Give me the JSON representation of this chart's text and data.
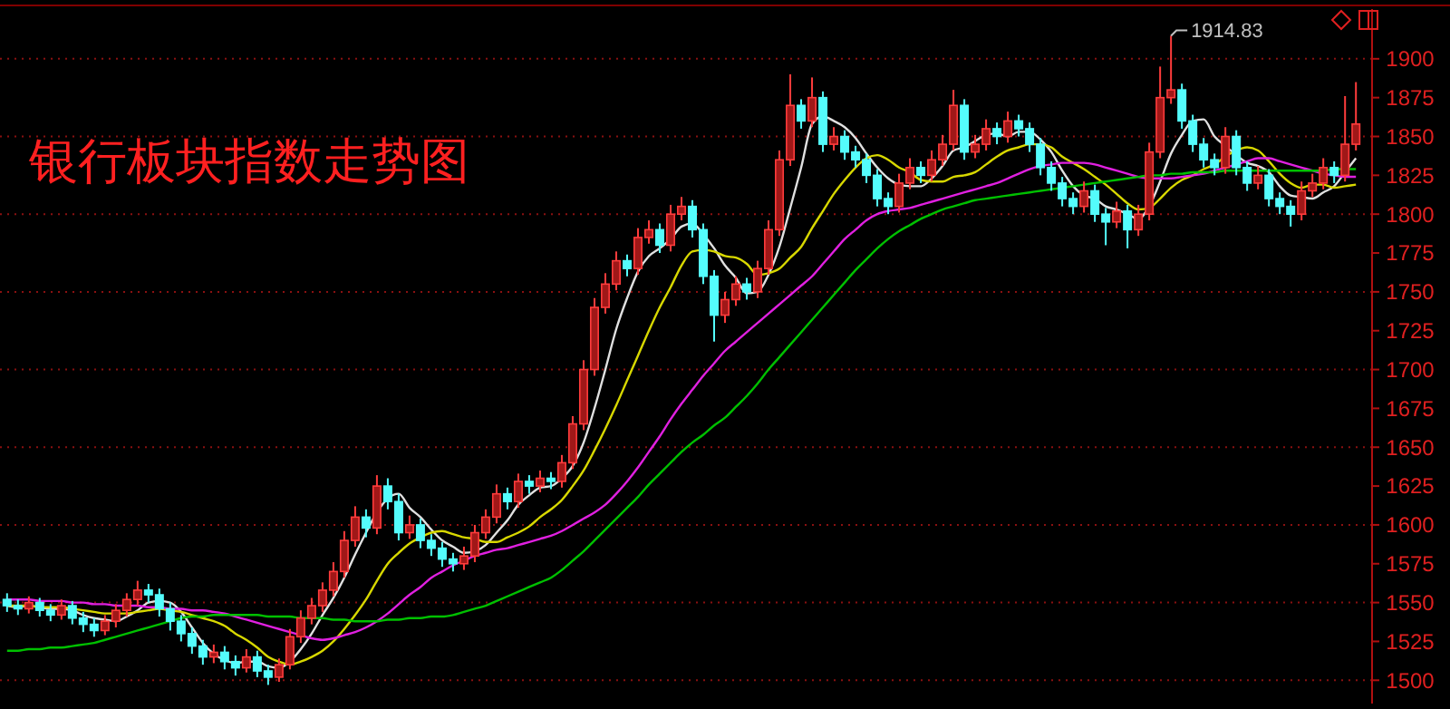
{
  "chart_data": {
    "type": "candlestick",
    "title": "银行板块指数走势图",
    "annotations": [
      "1914.83"
    ],
    "categories": [
      null,
      null,
      null,
      null,
      null,
      null,
      null,
      null,
      null,
      null,
      null,
      null,
      null,
      null,
      null,
      null,
      null,
      null,
      null,
      null,
      null,
      null,
      null,
      null,
      null,
      null,
      null,
      null,
      null,
      null,
      null,
      null,
      null,
      null,
      null,
      null,
      null,
      null,
      null,
      null,
      null,
      null,
      null,
      null,
      null,
      null,
      null,
      null,
      null,
      null,
      null,
      null,
      null,
      null,
      null,
      null,
      null,
      null,
      null,
      null,
      null,
      null,
      null,
      null,
      null,
      null,
      null,
      null,
      null,
      null,
      null,
      null,
      null,
      null,
      null,
      null,
      null,
      null,
      null,
      null,
      null,
      null,
      null,
      null,
      null,
      null,
      null,
      null,
      null,
      null,
      null,
      null,
      null,
      null,
      null,
      null,
      null,
      null,
      null,
      null,
      null,
      null,
      null,
      null,
      null,
      null,
      null,
      null,
      null,
      null,
      null,
      null,
      null,
      null,
      null,
      null,
      null,
      null,
      null,
      null,
      null,
      null,
      null,
      null,
      null
    ],
    "ohlc": [
      [
        1552,
        1556,
        1544,
        1548
      ],
      [
        1548,
        1552,
        1542,
        1546
      ],
      [
        1546,
        1554,
        1543,
        1550
      ],
      [
        1550,
        1553,
        1541,
        1545
      ],
      [
        1545,
        1549,
        1538,
        1542
      ],
      [
        1542,
        1552,
        1539,
        1548
      ],
      [
        1548,
        1551,
        1536,
        1540
      ],
      [
        1540,
        1544,
        1531,
        1536
      ],
      [
        1536,
        1540,
        1528,
        1532
      ],
      [
        1532,
        1542,
        1529,
        1538
      ],
      [
        1538,
        1549,
        1534,
        1545
      ],
      [
        1545,
        1556,
        1541,
        1552
      ],
      [
        1552,
        1564,
        1548,
        1558
      ],
      [
        1558,
        1562,
        1550,
        1555
      ],
      [
        1555,
        1559,
        1541,
        1546
      ],
      [
        1546,
        1550,
        1532,
        1538
      ],
      [
        1538,
        1542,
        1525,
        1530
      ],
      [
        1530,
        1534,
        1517,
        1522
      ],
      [
        1522,
        1526,
        1510,
        1515
      ],
      [
        1515,
        1523,
        1511,
        1518
      ],
      [
        1518,
        1522,
        1507,
        1512
      ],
      [
        1512,
        1516,
        1503,
        1508
      ],
      [
        1508,
        1520,
        1505,
        1515
      ],
      [
        1515,
        1519,
        1502,
        1506
      ],
      [
        1506,
        1510,
        1497,
        1502
      ],
      [
        1502,
        1514,
        1499,
        1510
      ],
      [
        1510,
        1533,
        1507,
        1528
      ],
      [
        1528,
        1545,
        1524,
        1540
      ],
      [
        1540,
        1553,
        1536,
        1548
      ],
      [
        1548,
        1563,
        1544,
        1558
      ],
      [
        1558,
        1576,
        1554,
        1570
      ],
      [
        1570,
        1596,
        1566,
        1590
      ],
      [
        1590,
        1612,
        1586,
        1605
      ],
      [
        1605,
        1610,
        1592,
        1598
      ],
      [
        1598,
        1632,
        1594,
        1625
      ],
      [
        1625,
        1630,
        1610,
        1615
      ],
      [
        1615,
        1620,
        1590,
        1595
      ],
      [
        1595,
        1606,
        1591,
        1600
      ],
      [
        1600,
        1604,
        1585,
        1590
      ],
      [
        1590,
        1594,
        1580,
        1585
      ],
      [
        1585,
        1589,
        1573,
        1578
      ],
      [
        1578,
        1582,
        1570,
        1575
      ],
      [
        1575,
        1586,
        1571,
        1580
      ],
      [
        1580,
        1600,
        1576,
        1595
      ],
      [
        1595,
        1610,
        1591,
        1605
      ],
      [
        1605,
        1626,
        1601,
        1620
      ],
      [
        1620,
        1624,
        1610,
        1615
      ],
      [
        1615,
        1633,
        1611,
        1628
      ],
      [
        1628,
        1632,
        1620,
        1625
      ],
      [
        1625,
        1635,
        1621,
        1630
      ],
      [
        1630,
        1634,
        1623,
        1628
      ],
      [
        1628,
        1645,
        1624,
        1640
      ],
      [
        1640,
        1670,
        1636,
        1665
      ],
      [
        1665,
        1706,
        1661,
        1700
      ],
      [
        1700,
        1746,
        1696,
        1740
      ],
      [
        1740,
        1762,
        1736,
        1755
      ],
      [
        1755,
        1776,
        1751,
        1770
      ],
      [
        1770,
        1774,
        1760,
        1765
      ],
      [
        1765,
        1791,
        1761,
        1785
      ],
      [
        1785,
        1796,
        1781,
        1790
      ],
      [
        1790,
        1794,
        1775,
        1780
      ],
      [
        1780,
        1806,
        1776,
        1800
      ],
      [
        1800,
        1811,
        1796,
        1805
      ],
      [
        1805,
        1809,
        1785,
        1790
      ],
      [
        1790,
        1794,
        1755,
        1760
      ],
      [
        1760,
        1764,
        1718,
        1735
      ],
      [
        1735,
        1750,
        1730,
        1745
      ],
      [
        1745,
        1760,
        1741,
        1755
      ],
      [
        1755,
        1759,
        1745,
        1750
      ],
      [
        1750,
        1770,
        1746,
        1765
      ],
      [
        1765,
        1796,
        1761,
        1790
      ],
      [
        1790,
        1841,
        1786,
        1835
      ],
      [
        1835,
        1890,
        1831,
        1870
      ],
      [
        1870,
        1874,
        1855,
        1860
      ],
      [
        1860,
        1888,
        1856,
        1875
      ],
      [
        1875,
        1879,
        1840,
        1845
      ],
      [
        1845,
        1856,
        1841,
        1850
      ],
      [
        1850,
        1854,
        1835,
        1840
      ],
      [
        1840,
        1844,
        1830,
        1835
      ],
      [
        1835,
        1839,
        1820,
        1825
      ],
      [
        1825,
        1829,
        1805,
        1810
      ],
      [
        1810,
        1814,
        1800,
        1805
      ],
      [
        1805,
        1826,
        1801,
        1820
      ],
      [
        1820,
        1836,
        1816,
        1830
      ],
      [
        1830,
        1834,
        1820,
        1825
      ],
      [
        1825,
        1841,
        1821,
        1835
      ],
      [
        1835,
        1851,
        1831,
        1845
      ],
      [
        1845,
        1880,
        1841,
        1870
      ],
      [
        1870,
        1874,
        1835,
        1840
      ],
      [
        1840,
        1851,
        1836,
        1845
      ],
      [
        1845,
        1861,
        1841,
        1855
      ],
      [
        1855,
        1859,
        1845,
        1850
      ],
      [
        1850,
        1866,
        1846,
        1860
      ],
      [
        1860,
        1864,
        1850,
        1855
      ],
      [
        1855,
        1859,
        1840,
        1845
      ],
      [
        1845,
        1849,
        1825,
        1830
      ],
      [
        1830,
        1834,
        1815,
        1820
      ],
      [
        1820,
        1824,
        1805,
        1810
      ],
      [
        1810,
        1814,
        1800,
        1805
      ],
      [
        1805,
        1821,
        1801,
        1815
      ],
      [
        1815,
        1819,
        1795,
        1800
      ],
      [
        1800,
        1804,
        1780,
        1795
      ],
      [
        1795,
        1808,
        1791,
        1802
      ],
      [
        1802,
        1806,
        1778,
        1790
      ],
      [
        1790,
        1806,
        1786,
        1800
      ],
      [
        1800,
        1846,
        1796,
        1840
      ],
      [
        1840,
        1895,
        1836,
        1875
      ],
      [
        1875,
        1914.83,
        1871,
        1880
      ],
      [
        1880,
        1884,
        1855,
        1860
      ],
      [
        1860,
        1864,
        1840,
        1845
      ],
      [
        1845,
        1849,
        1830,
        1835
      ],
      [
        1835,
        1839,
        1825,
        1830
      ],
      [
        1830,
        1856,
        1826,
        1850
      ],
      [
        1850,
        1854,
        1825,
        1830
      ],
      [
        1830,
        1834,
        1815,
        1820
      ],
      [
        1820,
        1831,
        1816,
        1825
      ],
      [
        1825,
        1829,
        1805,
        1810
      ],
      [
        1810,
        1814,
        1800,
        1805
      ],
      [
        1805,
        1809,
        1792,
        1800
      ],
      [
        1800,
        1821,
        1796,
        1815
      ],
      [
        1815,
        1826,
        1811,
        1820
      ],
      [
        1820,
        1836,
        1816,
        1830
      ],
      [
        1830,
        1834,
        1820,
        1825
      ],
      [
        1825,
        1876,
        1821,
        1845
      ],
      [
        1845,
        1885,
        1841,
        1858
      ]
    ],
    "series": [
      {
        "type": "line",
        "color": "#e0e0e0",
        "values": [
          1548,
          1547,
          1548,
          1547,
          1546,
          1546,
          1545,
          1542,
          1540,
          1539,
          1538,
          1541,
          1545,
          1550,
          1551,
          1550,
          1544,
          1534,
          1524,
          1517,
          1513,
          1511,
          1512,
          1512,
          1509,
          1508,
          1512,
          1520,
          1530,
          1542,
          1553,
          1566,
          1581,
          1595,
          1608,
          1617,
          1620,
          1611,
          1605,
          1597,
          1590,
          1586,
          1582,
          1583,
          1587,
          1595,
          1603,
          1613,
          1619,
          1624,
          1625,
          1630,
          1638,
          1653,
          1675,
          1700,
          1726,
          1746,
          1763,
          1773,
          1778,
          1784,
          1792,
          1794,
          1787,
          1778,
          1767,
          1759,
          1749,
          1750,
          1761,
          1779,
          1804,
          1830,
          1858,
          1863,
          1860,
          1856,
          1849,
          1839,
          1830,
          1823,
          1819,
          1818,
          1818,
          1823,
          1831,
          1841,
          1843,
          1847,
          1851,
          1852,
          1850,
          1853,
          1853,
          1848,
          1840,
          1828,
          1818,
          1812,
          1810,
          1805,
          1803,
          1800,
          1797,
          1805,
          1821,
          1839,
          1851,
          1860,
          1861,
          1850,
          1844,
          1838,
          1833,
          1831,
          1827,
          1818,
          1812,
          1811,
          1810,
          1814,
          1818,
          1827,
          1836
        ]
      },
      {
        "type": "line",
        "color": "#d8d800",
        "values": [
          1548,
          1548,
          1548,
          1547,
          1547,
          1547,
          1546,
          1545,
          1544,
          1543,
          1543,
          1543,
          1544,
          1545,
          1546,
          1545,
          1544,
          1542,
          1540,
          1538,
          1535,
          1530,
          1526,
          1521,
          1515,
          1512,
          1510,
          1512,
          1515,
          1519,
          1525,
          1533,
          1542,
          1552,
          1564,
          1575,
          1582,
          1588,
          1592,
          1595,
          1596,
          1594,
          1592,
          1591,
          1589,
          1589,
          1592,
          1595,
          1599,
          1605,
          1610,
          1616,
          1625,
          1635,
          1648,
          1662,
          1677,
          1693,
          1709,
          1725,
          1740,
          1753,
          1767,
          1776,
          1777,
          1776,
          1773,
          1772,
          1768,
          1761,
          1762,
          1765,
          1772,
          1779,
          1791,
          1802,
          1813,
          1822,
          1830,
          1836,
          1838,
          1835,
          1830,
          1827,
          1822,
          1821,
          1821,
          1824,
          1825,
          1827,
          1832,
          1837,
          1841,
          1843,
          1845,
          1845,
          1843,
          1837,
          1833,
          1829,
          1824,
          1819,
          1813,
          1807,
          1803,
          1804,
          1810,
          1817,
          1822,
          1825,
          1829,
          1832,
          1837,
          1841,
          1843,
          1841,
          1834,
          1826,
          1820,
          1817,
          1819,
          1819,
          1817,
          1818,
          1819
        ]
      },
      {
        "type": "line",
        "color": "#e020e0",
        "values": [
          1552,
          1552,
          1552,
          1551,
          1551,
          1551,
          1550,
          1550,
          1549,
          1549,
          1548,
          1548,
          1548,
          1547,
          1547,
          1546,
          1546,
          1545,
          1545,
          1544,
          1543,
          1541,
          1539,
          1537,
          1535,
          1533,
          1531,
          1529,
          1527,
          1526,
          1527,
          1529,
          1531,
          1534,
          1538,
          1543,
          1549,
          1555,
          1560,
          1566,
          1570,
          1574,
          1577,
          1580,
          1582,
          1584,
          1585,
          1587,
          1589,
          1591,
          1593,
          1596,
          1600,
          1604,
          1608,
          1613,
          1620,
          1628,
          1637,
          1647,
          1657,
          1668,
          1678,
          1687,
          1696,
          1704,
          1712,
          1718,
          1724,
          1730,
          1736,
          1742,
          1748,
          1754,
          1760,
          1768,
          1776,
          1784,
          1790,
          1796,
          1800,
          1802,
          1803,
          1804,
          1806,
          1808,
          1810,
          1812,
          1814,
          1816,
          1818,
          1820,
          1823,
          1826,
          1829,
          1831,
          1832,
          1833,
          1833,
          1833,
          1832,
          1830,
          1828,
          1826,
          1824,
          1823,
          1823,
          1823,
          1824,
          1825,
          1826,
          1828,
          1830,
          1832,
          1834,
          1836,
          1836,
          1834,
          1832,
          1830,
          1828,
          1826,
          1825,
          1824,
          1824
        ]
      },
      {
        "type": "line",
        "color": "#00c000",
        "values": [
          1519,
          1519,
          1520,
          1520,
          1521,
          1521,
          1522,
          1523,
          1524,
          1526,
          1528,
          1530,
          1532,
          1534,
          1536,
          1538,
          1540,
          1541,
          1541,
          1542,
          1542,
          1542,
          1542,
          1542,
          1541,
          1541,
          1541,
          1540,
          1540,
          1540,
          1539,
          1539,
          1538,
          1538,
          1538,
          1539,
          1539,
          1540,
          1540,
          1541,
          1541,
          1542,
          1544,
          1546,
          1548,
          1551,
          1554,
          1557,
          1560,
          1563,
          1566,
          1571,
          1577,
          1583,
          1590,
          1597,
          1604,
          1611,
          1618,
          1626,
          1633,
          1640,
          1647,
          1653,
          1658,
          1664,
          1669,
          1676,
          1683,
          1691,
          1700,
          1708,
          1716,
          1724,
          1732,
          1740,
          1748,
          1756,
          1764,
          1771,
          1778,
          1784,
          1789,
          1793,
          1797,
          1800,
          1803,
          1805,
          1807,
          1809,
          1810,
          1811,
          1812,
          1813,
          1814,
          1815,
          1816,
          1817,
          1818,
          1819,
          1820,
          1821,
          1822,
          1823,
          1824,
          1825,
          1825,
          1826,
          1826,
          1827,
          1827,
          1827,
          1828,
          1828,
          1828,
          1828,
          1828,
          1828,
          1828,
          1828,
          1828,
          1828,
          1829,
          1829,
          1829
        ]
      }
    ],
    "ylim": [
      1485,
      1932
    ],
    "yticks": [
      1500,
      1525,
      1550,
      1575,
      1600,
      1625,
      1650,
      1675,
      1700,
      1725,
      1750,
      1775,
      1800,
      1825,
      1850,
      1875,
      1900
    ],
    "grid": "y",
    "tick_labels": "y"
  }
}
